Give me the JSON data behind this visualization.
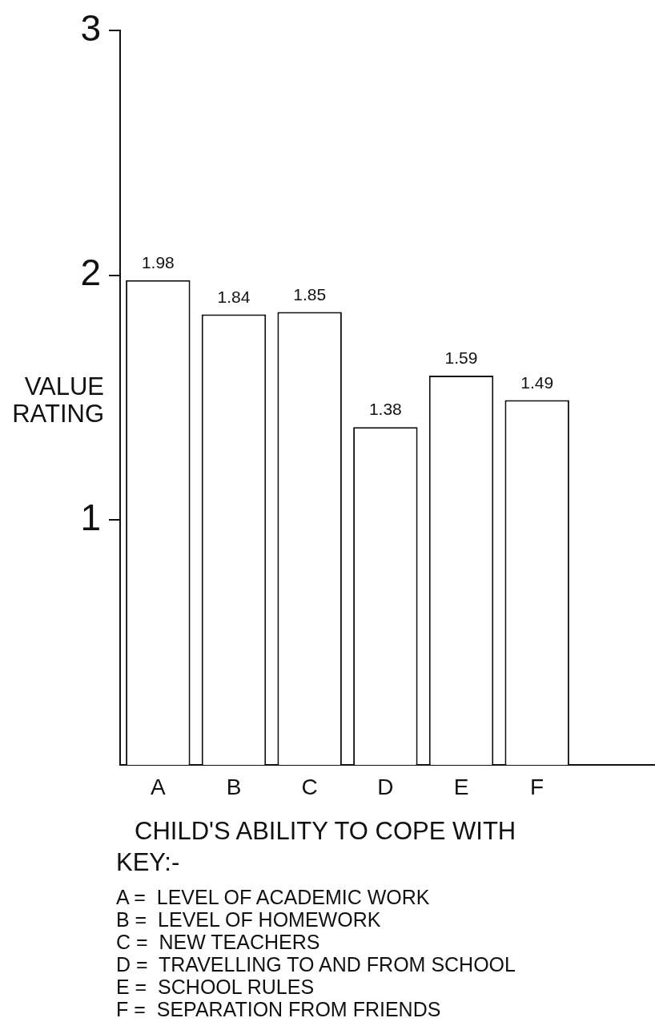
{
  "chart_data": {
    "type": "bar",
    "ylabel": "VALUE RATING",
    "xlabel": "CHILD'S ABILITY TO COPE WITH",
    "categories": [
      "A",
      "B",
      "C",
      "D",
      "E",
      "F"
    ],
    "values": [
      1.98,
      1.84,
      1.85,
      1.38,
      1.59,
      1.49
    ],
    "color": "#ffffff",
    "data_labels": true,
    "grid": false,
    "legend": false,
    "ylim": [
      0,
      3
    ],
    "yticks": [
      1,
      2,
      3
    ],
    "annotations": [
      "KEY:-",
      "A =  LEVEL OF ACADEMIC WORK",
      "B =  LEVEL OF HOMEWORK",
      "C =  NEW TEACHERS",
      "D =  TRAVELLING TO AND FROM SCHOOL",
      "E =  SCHOOL RULES",
      "F =  SEPARATION FROM FRIENDS"
    ]
  }
}
